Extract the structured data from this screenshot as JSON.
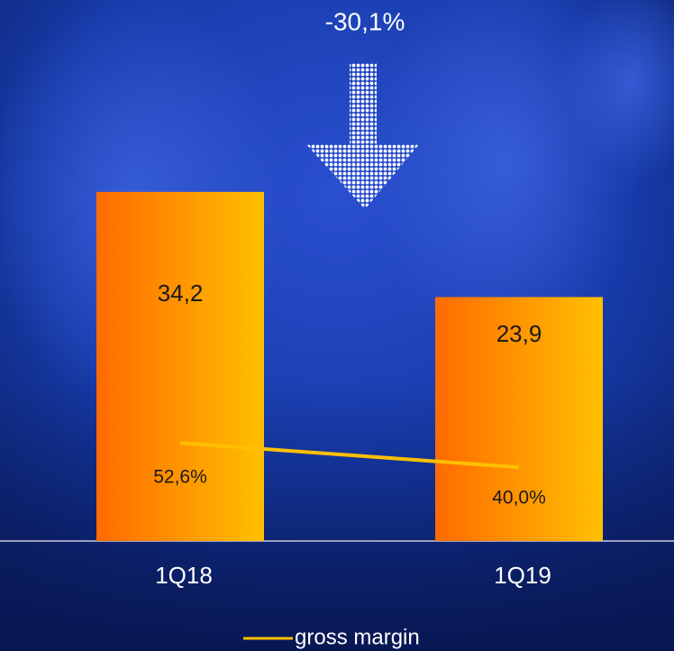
{
  "chart_data": {
    "type": "bar",
    "annotation": "-30,1%",
    "categories": [
      "1Q18",
      "1Q19"
    ],
    "series": [
      {
        "type": "bar",
        "values": [
          34.2,
          23.9
        ],
        "value_labels": [
          "34,2",
          "23,9"
        ],
        "gradient": [
          "#ff6a00",
          "#ffc000"
        ]
      },
      {
        "name": "gross margin",
        "type": "line",
        "color": "#ffc000",
        "values": [
          52.6,
          40.0
        ],
        "value_labels": [
          "52,6%",
          "40,0%"
        ]
      }
    ]
  }
}
